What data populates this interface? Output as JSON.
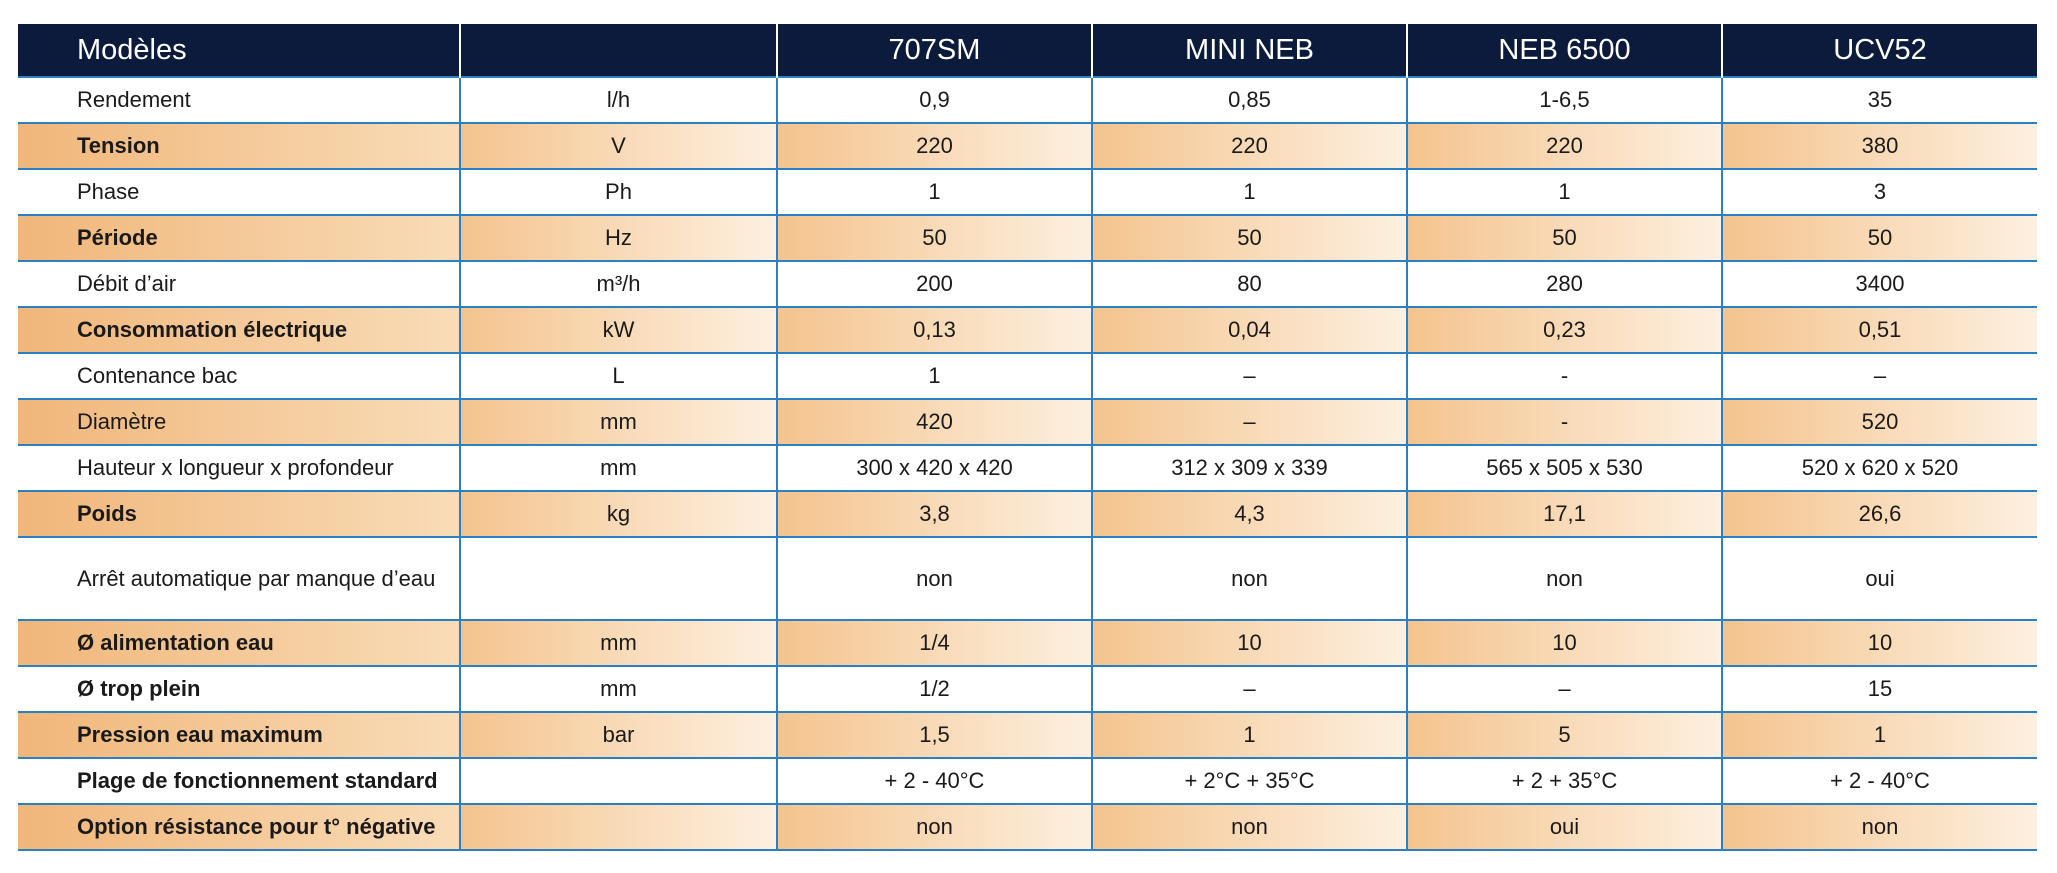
{
  "table": {
    "header": {
      "label": "Modèles",
      "models": [
        "707SM",
        "MINI NEB",
        "NEB 6500",
        "UCV52"
      ]
    },
    "rows": [
      {
        "label": "Rendement",
        "unit": "l/h",
        "values": [
          "0,9",
          "0,85",
          "1-6,5",
          "35"
        ]
      },
      {
        "label": "Tension",
        "unit": "V",
        "values": [
          "220",
          "220",
          "220",
          "380"
        ]
      },
      {
        "label": "Phase",
        "unit": "Ph",
        "values": [
          "1",
          "1",
          "1",
          "3"
        ]
      },
      {
        "label": "Période",
        "unit": "Hz",
        "values": [
          "50",
          "50",
          "50",
          "50"
        ]
      },
      {
        "label": "Débit d’air",
        "unit": "m³/h",
        "values": [
          "200",
          "80",
          "280",
          "3400"
        ]
      },
      {
        "label": "Consommation électrique",
        "unit": "kW",
        "values": [
          "0,13",
          "0,04",
          "0,23",
          "0,51"
        ]
      },
      {
        "label": "Contenance bac",
        "unit": "L",
        "values": [
          "1",
          "–",
          "-",
          "–"
        ]
      },
      {
        "label": "Diamètre",
        "unit": "mm",
        "values": [
          "420",
          "–",
          "-",
          "520"
        ]
      },
      {
        "label": "Hauteur x longueur x profondeur",
        "unit": "mm",
        "values": [
          "300 x 420 x 420",
          "312 x 309 x 339",
          "565 x 505 x 530",
          "520 x 620 x 520"
        ]
      },
      {
        "label": "Poids",
        "unit": "kg",
        "values": [
          "3,8",
          "4,3",
          "17,1",
          "26,6"
        ]
      },
      {
        "label": "Arrêt automatique par manque d’eau",
        "values": [
          "non",
          "non",
          "non",
          "oui"
        ]
      },
      {
        "label": "Ø alimentation eau",
        "unit": "mm",
        "values": [
          "1/4",
          "10",
          "10",
          "10"
        ]
      },
      {
        "label": "Ø trop plein",
        "unit": "mm",
        "values": [
          "1/2",
          "–",
          "–",
          "15"
        ]
      },
      {
        "label": "Pression eau maximum",
        "unit": "bar",
        "values": [
          "1,5",
          "1",
          "5",
          "1"
        ]
      },
      {
        "label": "Plage de fonctionnement standard",
        "values": [
          "+ 2 - 40°C",
          "+ 2°C + 35°C",
          "+ 2 + 35°C",
          "+ 2 - 40°C"
        ]
      },
      {
        "label": "Option résistance pour t° négative",
        "values": [
          "non",
          "non",
          "oui",
          "non"
        ]
      }
    ]
  }
}
